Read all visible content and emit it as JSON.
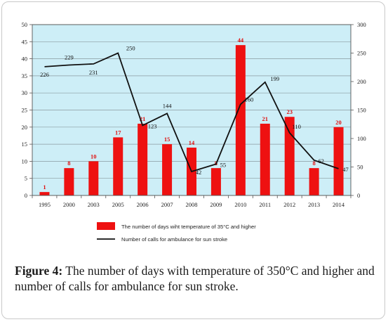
{
  "chart_data": {
    "type": "bar",
    "categories": [
      "1995",
      "2000",
      "2003",
      "2005",
      "2006",
      "2007",
      "2008",
      "2009",
      "2010",
      "2011",
      "2012",
      "2013",
      "2014"
    ],
    "series": [
      {
        "name": "The number of days wiht temperature of 35°C and higher",
        "type": "bar",
        "axis": "left",
        "color": "#ee1111",
        "values": [
          1,
          8,
          10,
          17,
          21,
          15,
          14,
          8,
          44,
          21,
          23,
          8,
          20
        ],
        "labels": [
          "1",
          "8",
          "10",
          "17",
          "21",
          "15",
          "14",
          "8",
          "44",
          "21",
          "23",
          "8",
          "20"
        ]
      },
      {
        "name": "Number of calls for ambulance for sun stroke",
        "type": "line",
        "axis": "right",
        "color": "#111111",
        "values": [
          226,
          229,
          231,
          250,
          123,
          144,
          42,
          55,
          160,
          199,
          110,
          62,
          47
        ],
        "labels": [
          "226",
          "229",
          "231",
          "250",
          "123",
          "144",
          "42",
          "55",
          "160",
          "199",
          "110",
          "62",
          "47"
        ]
      }
    ],
    "y_left": {
      "range": [
        0,
        50
      ],
      "ticks": [
        "0",
        "5",
        "10",
        "15",
        "20",
        "25",
        "30",
        "35",
        "40",
        "45",
        "50"
      ]
    },
    "y_right": {
      "range": [
        0,
        300
      ],
      "ticks": [
        "0",
        "50",
        "100",
        "150",
        "200",
        "250",
        "300"
      ]
    },
    "plot_background": "#cdeef7",
    "grid": true,
    "legend_position": "bottom"
  },
  "caption": {
    "label": "Figure 4:",
    "text": " The number of days with temperature of 350°C and higher and number of calls for ambulance for sun stroke."
  }
}
